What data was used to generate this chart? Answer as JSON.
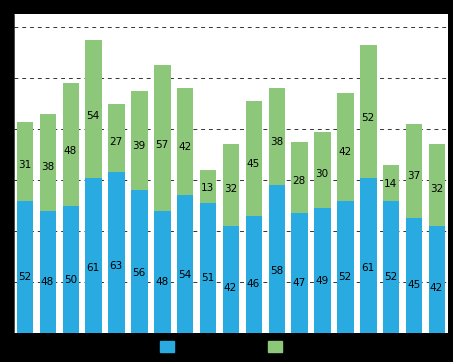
{
  "blue_values": [
    52,
    48,
    50,
    61,
    63,
    56,
    48,
    54,
    51,
    42,
    46,
    58,
    47,
    49,
    52,
    61,
    52,
    45,
    42
  ],
  "green_values": [
    31,
    38,
    48,
    54,
    27,
    39,
    57,
    42,
    13,
    32,
    45,
    38,
    28,
    30,
    42,
    52,
    14,
    37,
    32
  ],
  "blue_color": "#29ABE2",
  "green_color": "#8DC87A",
  "background_color": "#000000",
  "plot_bg_color": "#ffffff",
  "grid_color": "#333333",
  "ylim": [
    0,
    125
  ],
  "bar_width": 0.72,
  "label_fontsize": 7.5
}
